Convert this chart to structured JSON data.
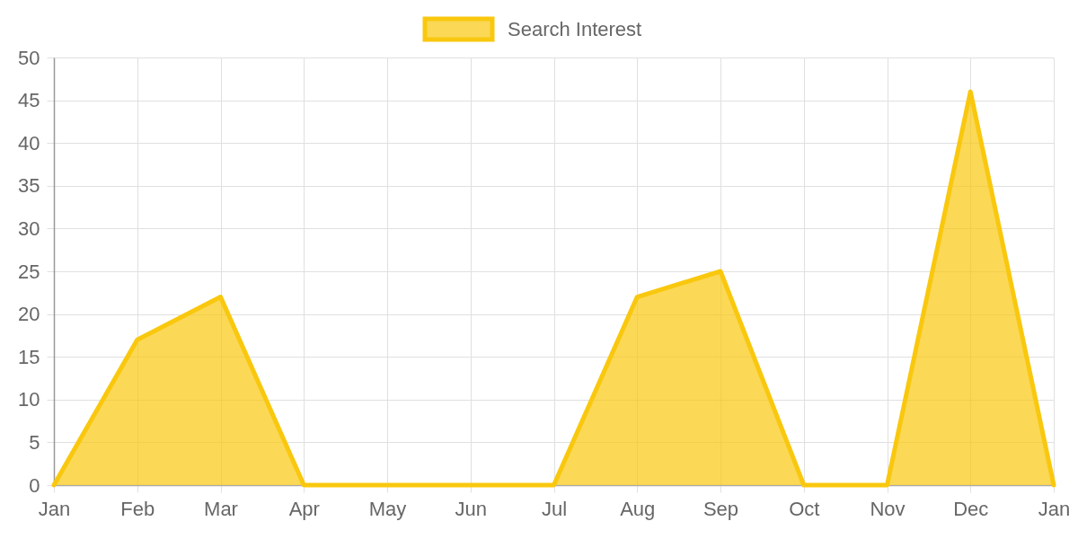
{
  "chart_data": {
    "type": "area",
    "categories": [
      "Jan",
      "Feb",
      "Mar",
      "Apr",
      "May",
      "Jun",
      "Jul",
      "Aug",
      "Sep",
      "Oct",
      "Nov",
      "Dec",
      "Jan"
    ],
    "series": [
      {
        "name": "Search Interest",
        "color": "#f9c80e",
        "values": [
          0,
          17,
          22,
          0,
          0,
          0,
          0,
          22,
          25,
          0,
          0,
          46,
          0
        ]
      }
    ],
    "ylim": [
      0,
      50
    ],
    "yticks": [
      0,
      5,
      10,
      15,
      20,
      25,
      30,
      35,
      40,
      45,
      50
    ],
    "grid": true,
    "legend": "top"
  }
}
